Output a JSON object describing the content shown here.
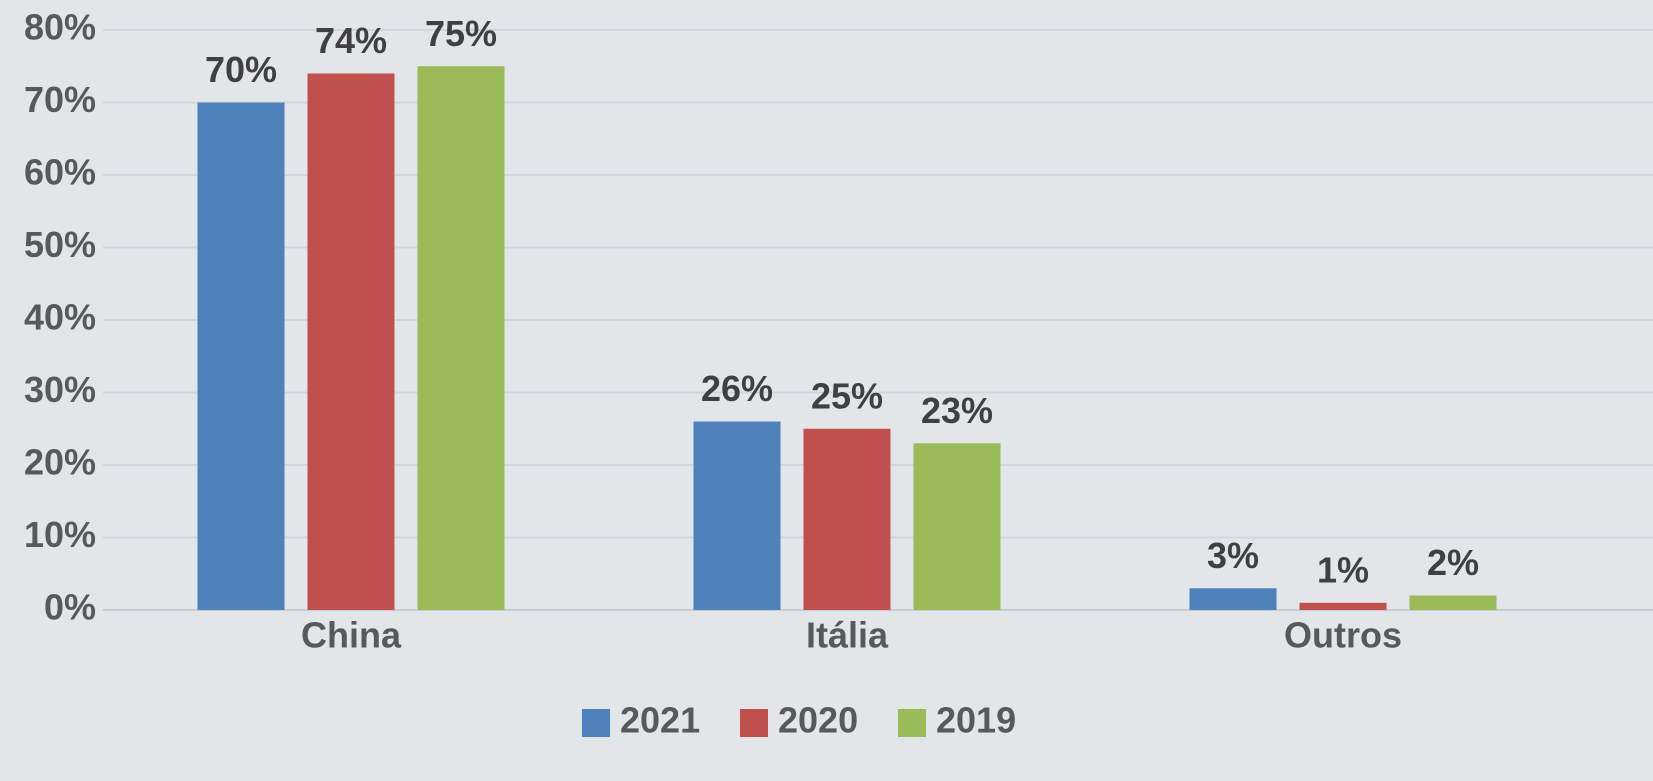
{
  "chart_data": {
    "type": "bar",
    "categories": [
      "China",
      "Itália",
      "Outros"
    ],
    "series": [
      {
        "name": "2021",
        "color": "#4f81bd",
        "values": [
          70,
          26,
          3
        ],
        "value_labels": [
          "70%",
          "26%",
          "3%"
        ]
      },
      {
        "name": "2020",
        "color": "#c0504d",
        "values": [
          74,
          25,
          1
        ],
        "value_labels": [
          "74%",
          "25%",
          "1%"
        ]
      },
      {
        "name": "2019",
        "color": "#9bbb59",
        "values": [
          75,
          23,
          2
        ],
        "value_labels": [
          "75%",
          "23%",
          "2%"
        ]
      }
    ],
    "ylim": [
      0,
      80
    ],
    "yticks": [
      {
        "value": 0,
        "label": "0%"
      },
      {
        "value": 10,
        "label": "10%"
      },
      {
        "value": 20,
        "label": "20%"
      },
      {
        "value": 30,
        "label": "30%"
      },
      {
        "value": 40,
        "label": "40%"
      },
      {
        "value": 50,
        "label": "50%"
      },
      {
        "value": 60,
        "label": "60%"
      },
      {
        "value": 70,
        "label": "70%"
      },
      {
        "value": 80,
        "label": "80%"
      }
    ],
    "grid": true,
    "legend": "bottom"
  }
}
